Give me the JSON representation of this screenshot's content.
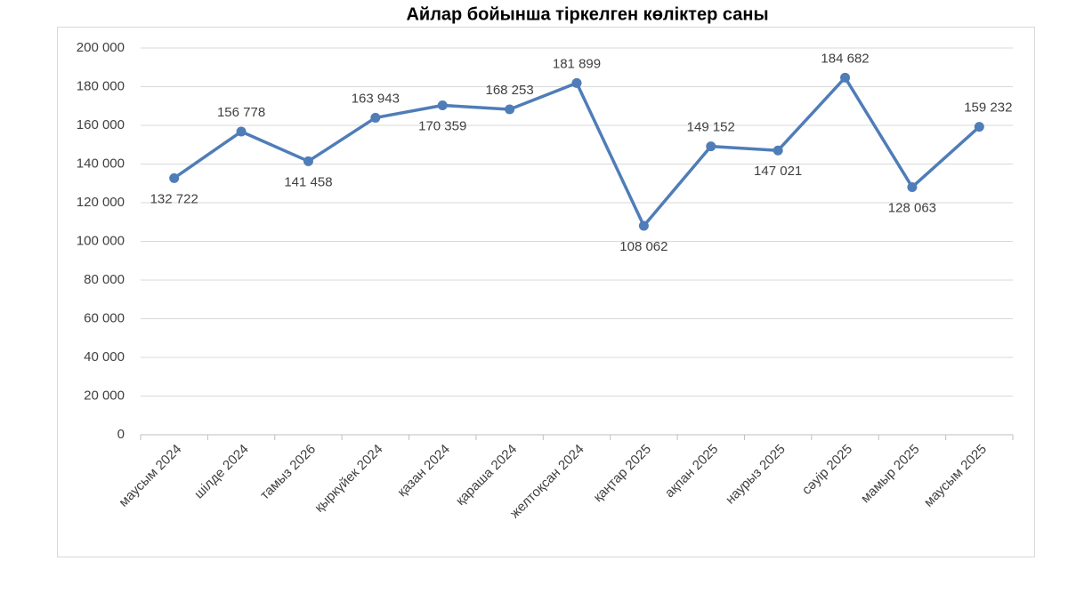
{
  "chart_data": {
    "type": "line",
    "title": "Айлар бойынша тіркелген көліктер саны",
    "categories": [
      "маусым 2024",
      "шілде 2024",
      "тамыз 2026",
      "қыркүйек 2024",
      "қазан 2024",
      "қараша 2024",
      "желтоқсан 2024",
      "қаңтар 2025",
      "ақпан 2025",
      "наурыз 2025",
      "сәуір 2025",
      "мамыр 2025",
      "маусым 2025"
    ],
    "values": [
      132722,
      156778,
      141458,
      163943,
      170359,
      168253,
      181899,
      108062,
      149152,
      147021,
      184682,
      128063,
      159232
    ],
    "value_labels": [
      "132 722",
      "156 778",
      "141 458",
      "163 943",
      "170 359",
      "168 253",
      "181 899",
      "108 062",
      "149 152",
      "147 021",
      "184 682",
      "128 063",
      "159 232"
    ],
    "color": "#4f7db8",
    "ylim": [
      0,
      200000
    ],
    "yticks": [
      0,
      {
        "value": 20000,
        "label": "20 000"
      },
      {
        "value": 40000,
        "label": "40 000"
      },
      {
        "value": 60000,
        "label": "60 000"
      },
      {
        "value": 80000,
        "label": "80 000"
      },
      {
        "value": 100000,
        "label": "100 000"
      },
      {
        "value": 120000,
        "label": "120 000"
      },
      {
        "value": 140000,
        "label": "140 000"
      },
      {
        "value": 160000,
        "label": "160 000"
      },
      {
        "value": 180000,
        "label": "180 000"
      },
      {
        "value": 200000,
        "label": "200 000"
      }
    ],
    "grid": true
  }
}
